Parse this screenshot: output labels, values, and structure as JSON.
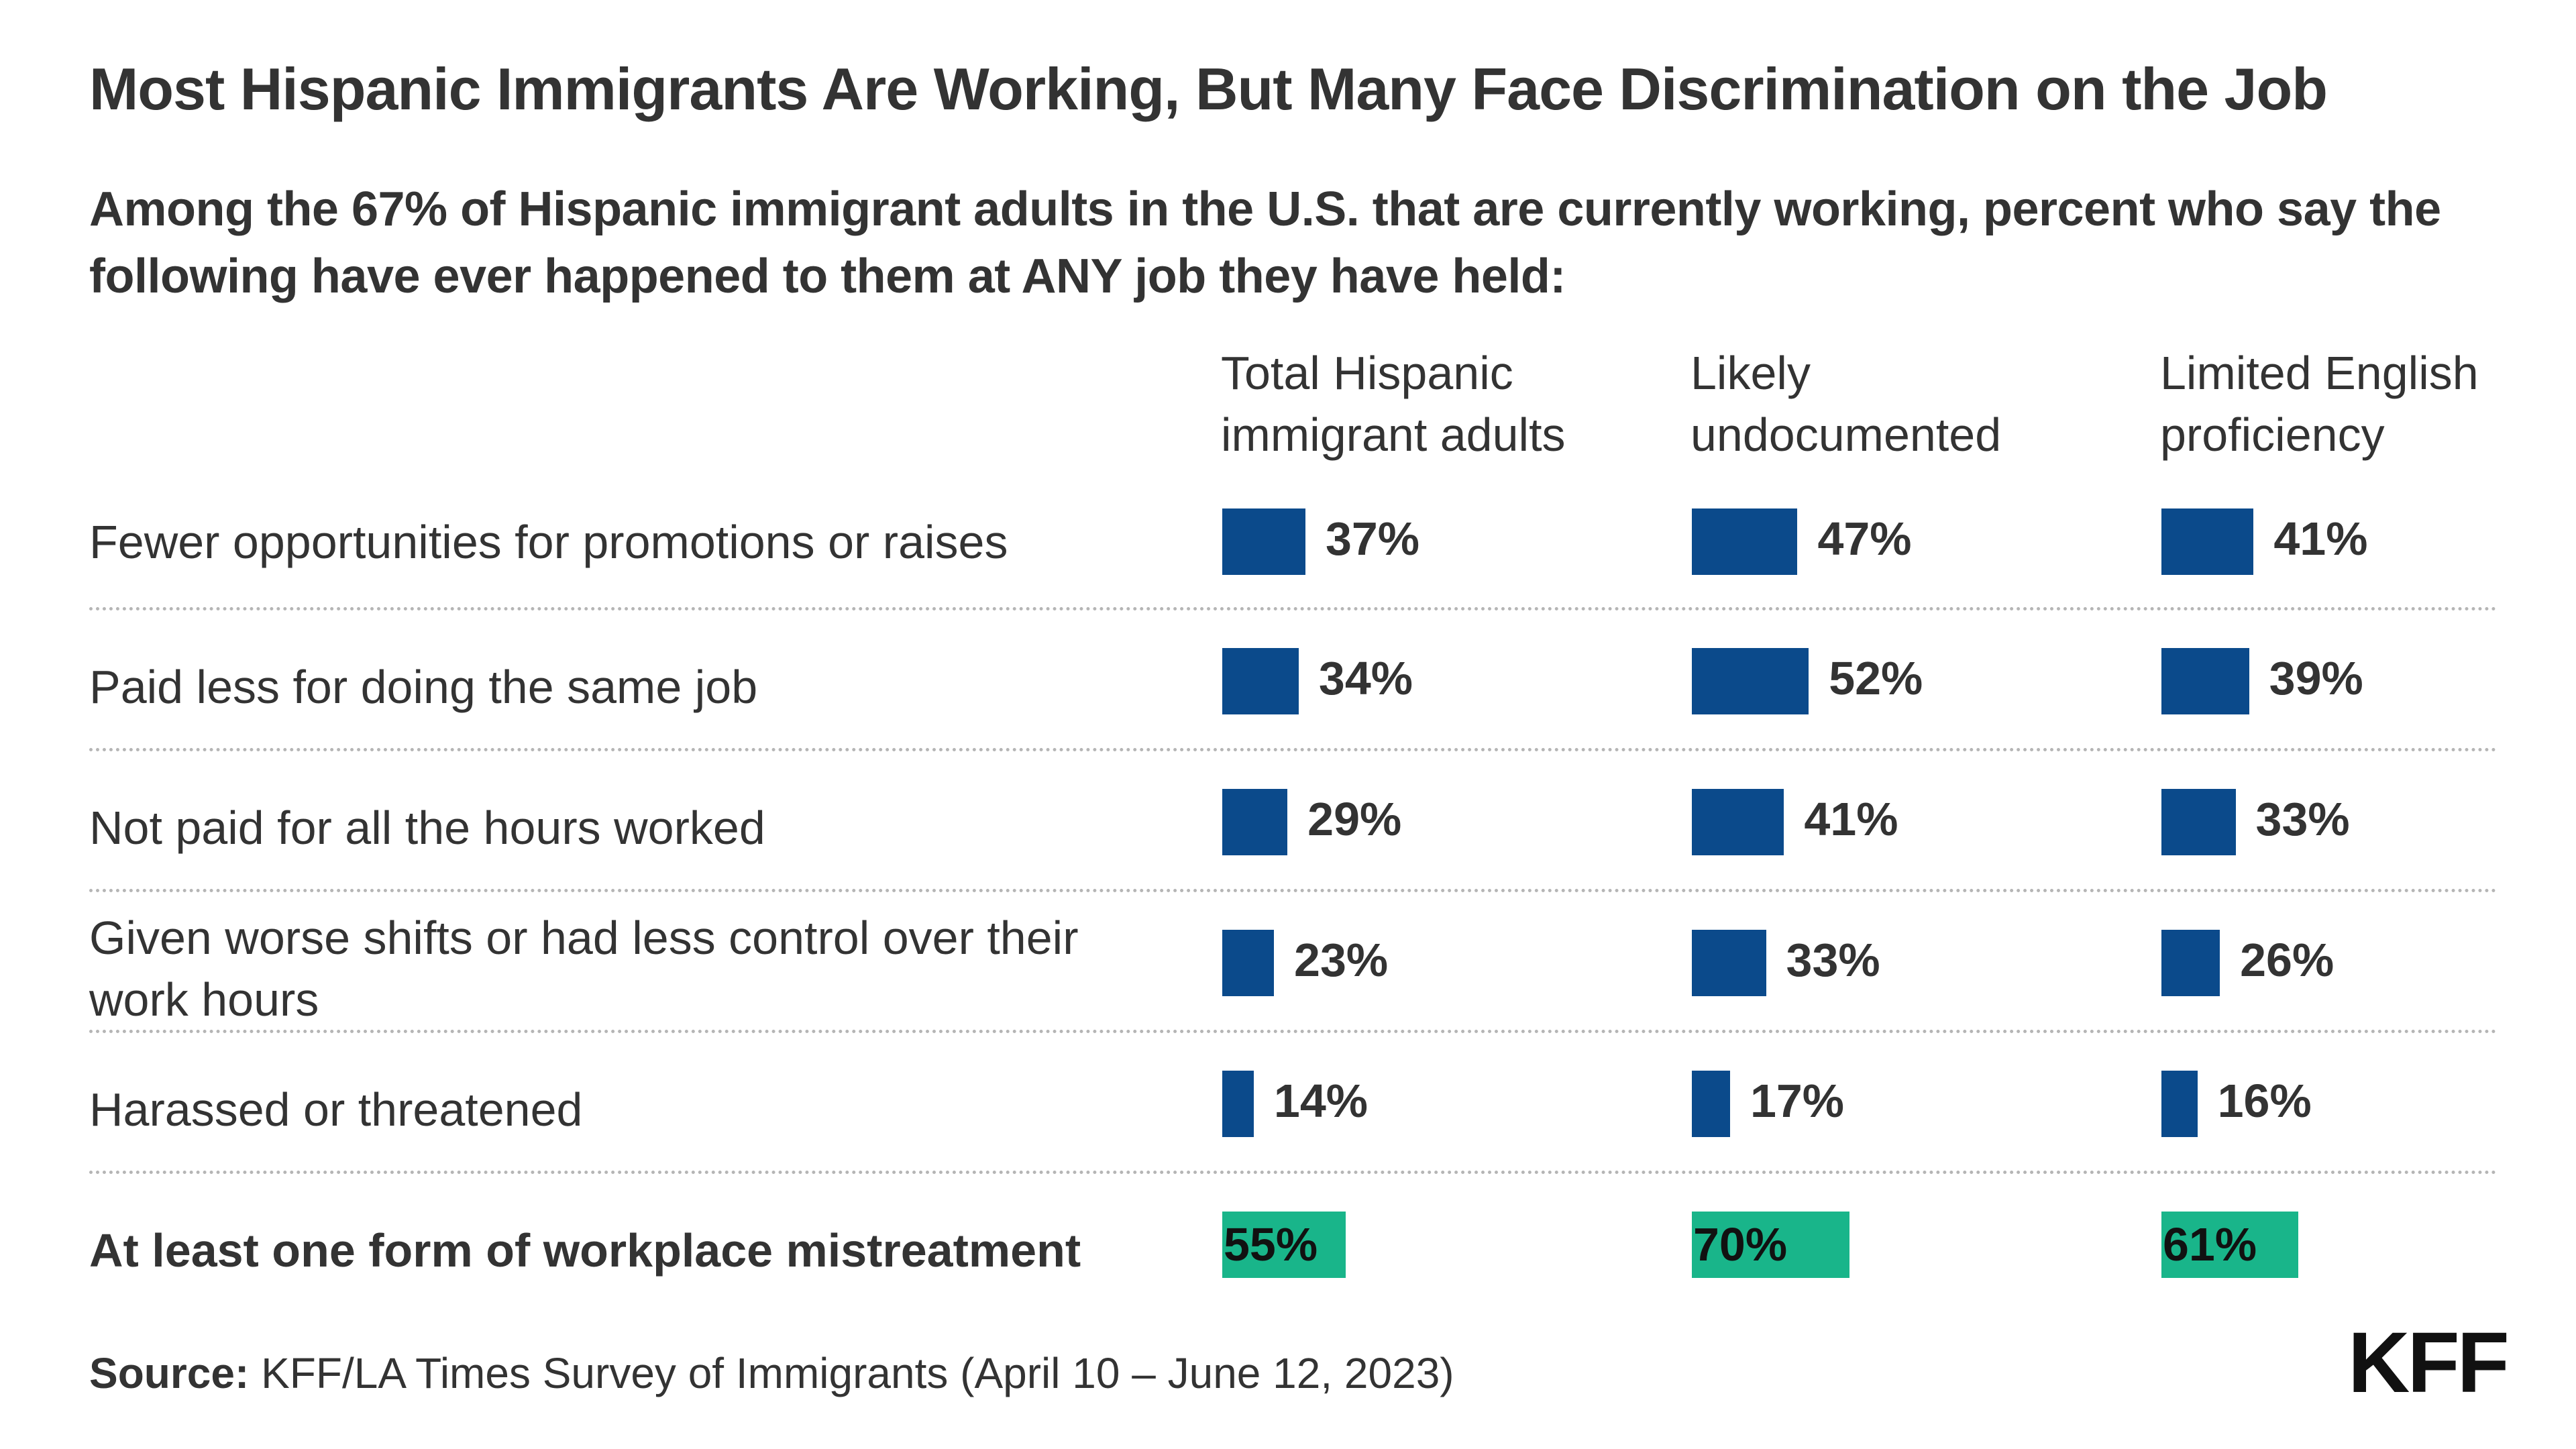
{
  "title": "Most Hispanic Immigrants Are Working, But Many Face Discrimination on the Job",
  "subtitle": "Among the 67% of Hispanic immigrant adults in the U.S. that are currently working, percent who say the following have ever happened to them at ANY job they have held:",
  "source_label": "Source:",
  "source_text": "KFF/LA Times Survey of Immigrants (April 10 – June 12, 2023)",
  "logo_text": "KFF",
  "colors": {
    "bar": "#0b4a8b",
    "total": "#19b58a",
    "divider": "#b5b5b5",
    "text": "#333333"
  },
  "chart_data": {
    "type": "bar",
    "orientation": "horizontal",
    "groups": [
      "Total Hispanic immigrant adults",
      "Likely undocumented",
      "Limited English proficiency"
    ],
    "categories": [
      "Fewer opportunities for promotions or raises",
      "Paid less for doing the same job",
      "Not paid for all the hours worked",
      "Given worse shifts or had less control over their work hours",
      "Harassed or threatened",
      "At least one form of workplace mistreatment"
    ],
    "series": [
      {
        "name": "Total Hispanic immigrant adults",
        "values": [
          37,
          34,
          29,
          23,
          14,
          55
        ],
        "labels": [
          "37%",
          "34%",
          "29%",
          "23%",
          "14%",
          "55%"
        ]
      },
      {
        "name": "Likely undocumented",
        "values": [
          47,
          52,
          41,
          33,
          17,
          70
        ],
        "labels": [
          "47%",
          "52%",
          "41%",
          "33%",
          "17%",
          "70%"
        ]
      },
      {
        "name": "Limited English proficiency",
        "values": [
          41,
          39,
          33,
          26,
          16,
          61
        ],
        "labels": [
          "41%",
          "39%",
          "33%",
          "26%",
          "16%",
          "61%"
        ]
      }
    ],
    "unit": "%",
    "grid": false,
    "legend": "none"
  }
}
